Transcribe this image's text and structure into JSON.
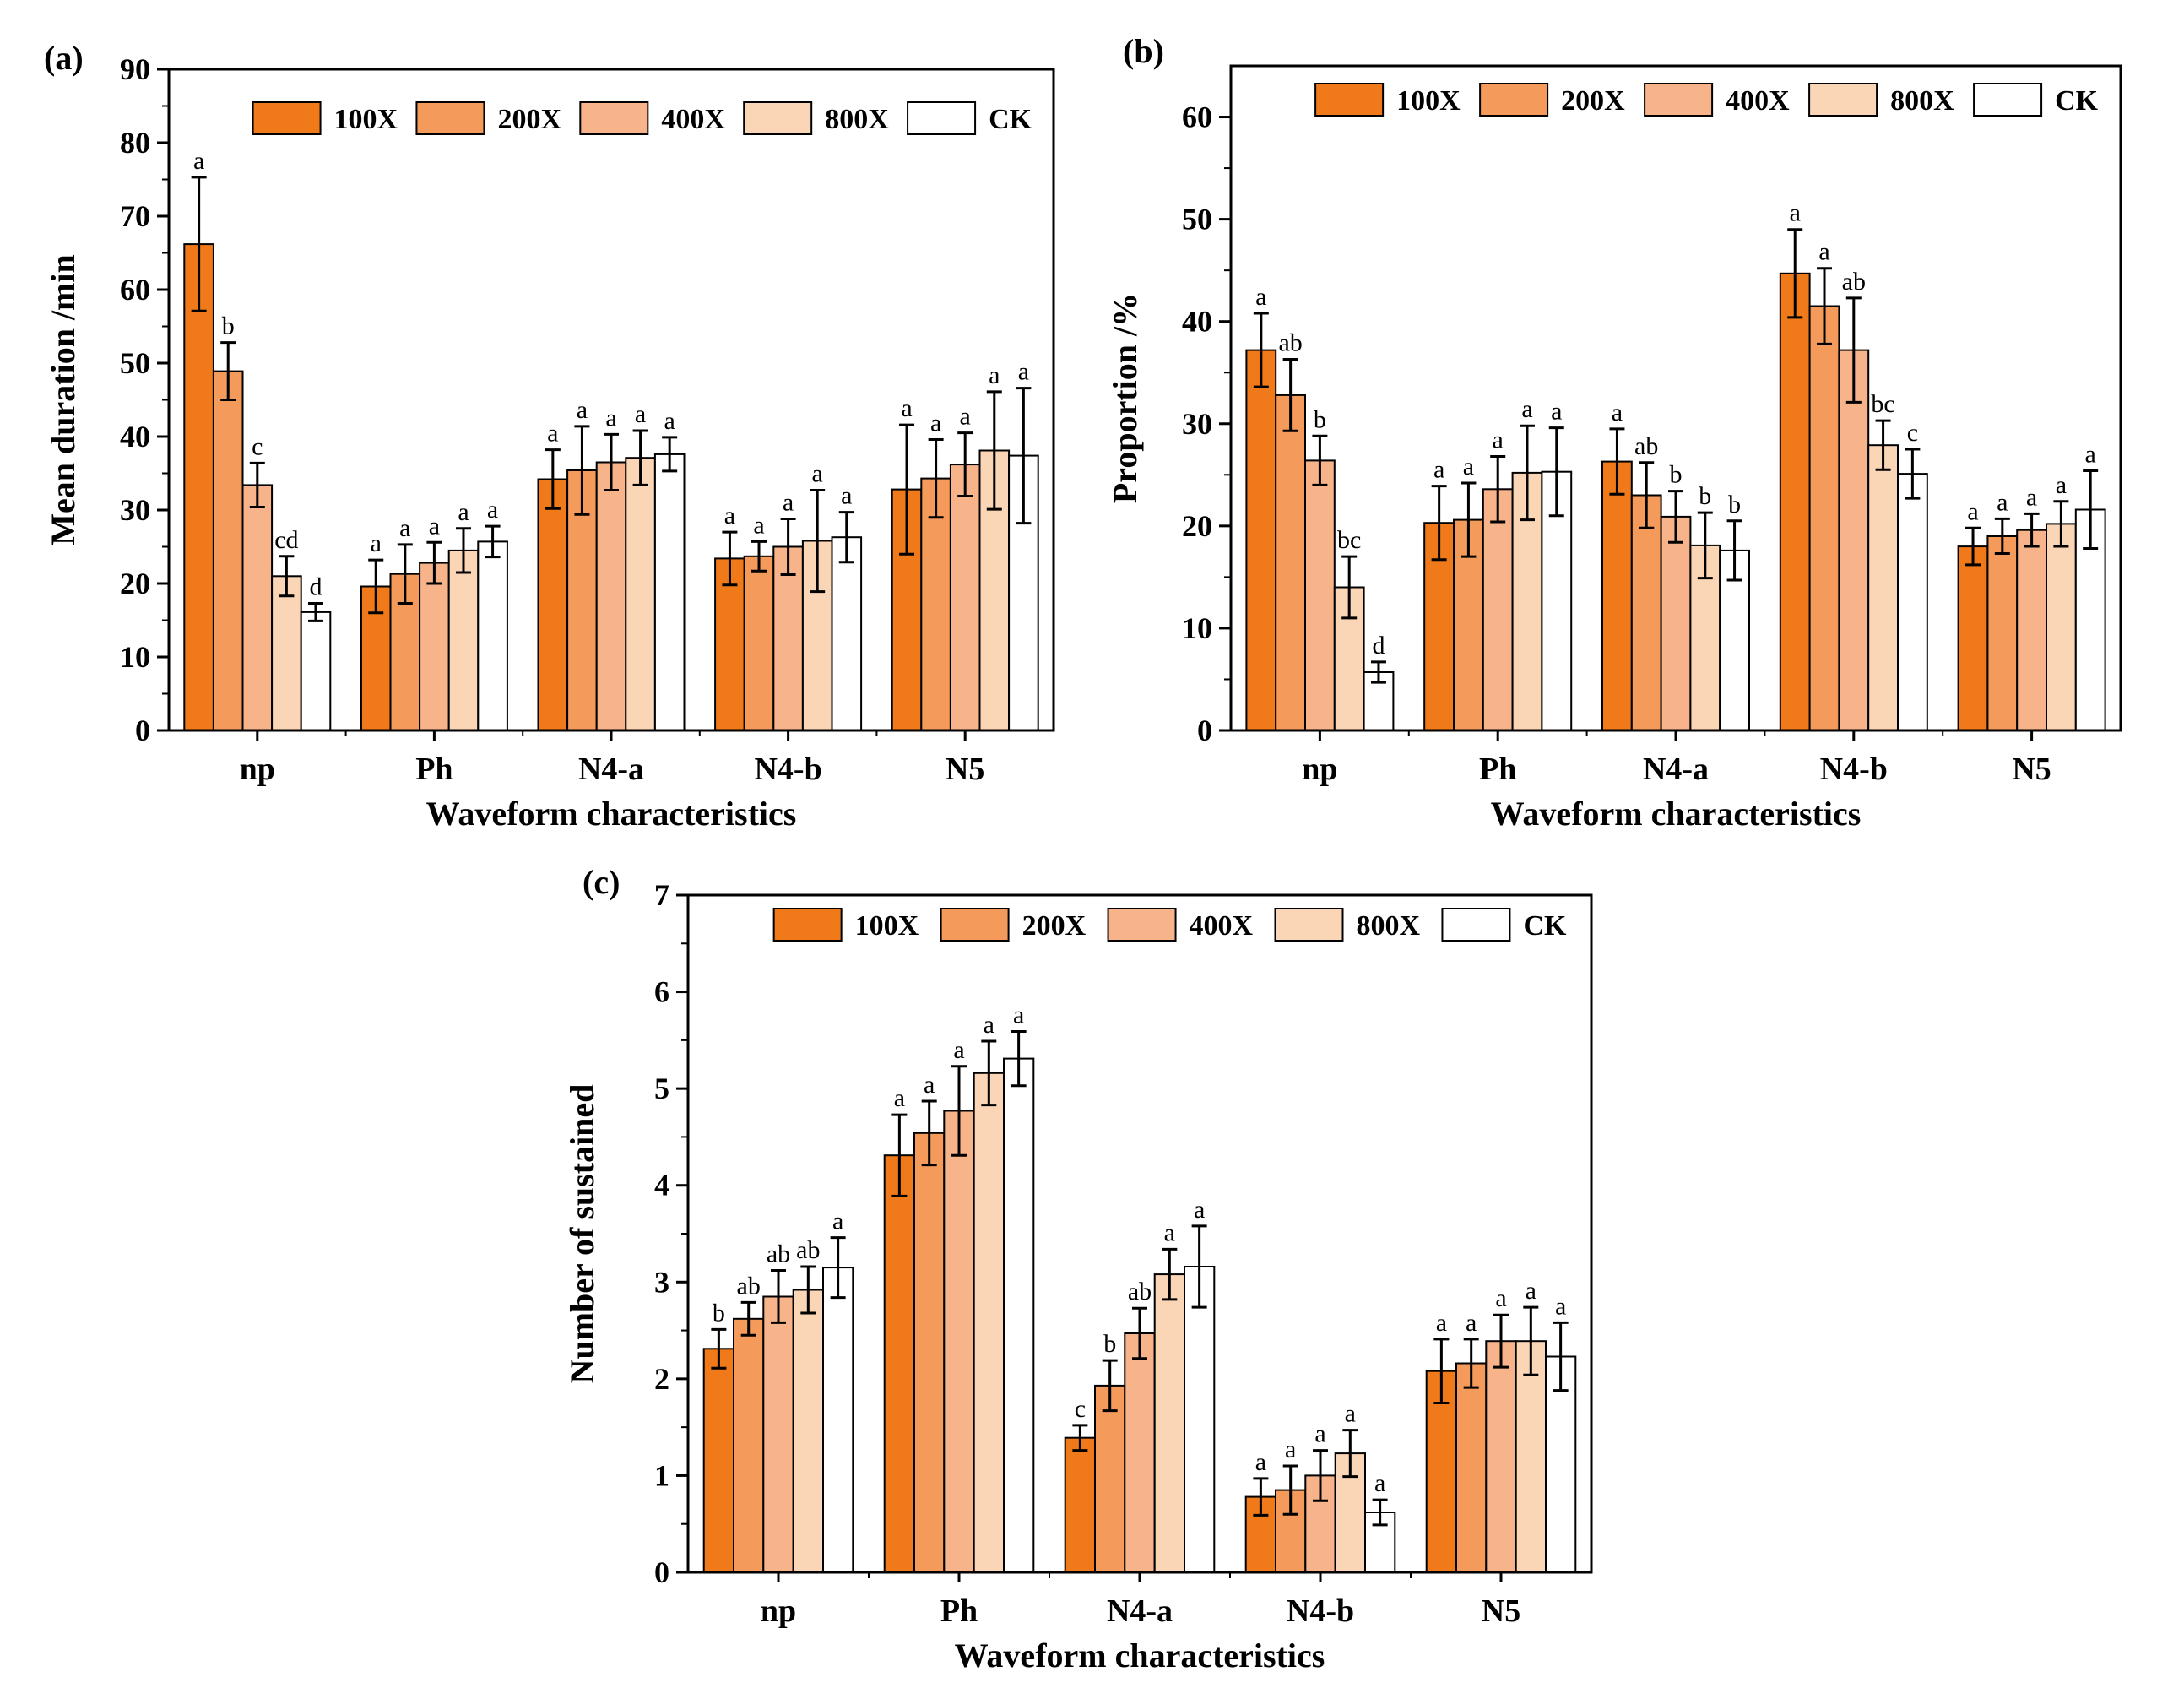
{
  "colors": {
    "100X": "#f07a1a",
    "200X": "#f49a5a",
    "400X": "#f7b48a",
    "800X": "#fbd6b6",
    "CK": "#ffffff"
  },
  "chart_data": [
    {
      "panel": "(a)",
      "type": "bar",
      "categories": [
        "np",
        "Ph",
        "N4-a",
        "N4-b",
        "N5"
      ],
      "xlabel": "Waveform characteristics",
      "ylabel": "Mean duration /min",
      "ylim": [
        0,
        90
      ],
      "yticks": [
        "0",
        "10",
        "20",
        "30",
        "40",
        "50",
        "60",
        "70",
        "80",
        "90"
      ],
      "legend_position": "top",
      "series": [
        {
          "name": "100X",
          "values": [
            66.2,
            19.6,
            34.2,
            23.4,
            32.8
          ],
          "errors": [
            9.1,
            3.6,
            4.0,
            3.6,
            8.8
          ],
          "letters": [
            "a",
            "a",
            "a",
            "a",
            "a"
          ]
        },
        {
          "name": "200X",
          "values": [
            48.9,
            21.3,
            35.4,
            23.7,
            34.3
          ],
          "errors": [
            3.9,
            4.0,
            6.0,
            2.0,
            5.3
          ],
          "letters": [
            "b",
            "a",
            "a",
            "a",
            "a"
          ]
        },
        {
          "name": "400X",
          "values": [
            33.4,
            22.8,
            36.5,
            25.0,
            36.2
          ],
          "errors": [
            3.0,
            2.8,
            3.8,
            3.8,
            4.3
          ],
          "letters": [
            "c",
            "a",
            "a",
            "a",
            "a"
          ]
        },
        {
          "name": "800X",
          "values": [
            21.0,
            24.5,
            37.1,
            25.8,
            38.1
          ],
          "errors": [
            2.7,
            3.0,
            3.7,
            6.9,
            8.0
          ],
          "letters": [
            "cd",
            "a",
            "a",
            "a",
            "a"
          ]
        },
        {
          "name": "CK",
          "values": [
            16.1,
            25.7,
            37.6,
            26.3,
            37.4
          ],
          "errors": [
            1.2,
            2.1,
            2.3,
            3.4,
            9.2
          ],
          "letters": [
            "d",
            "a",
            "a",
            "a",
            "a"
          ]
        }
      ]
    },
    {
      "panel": "(b)",
      "type": "bar",
      "categories": [
        "np",
        "Ph",
        "N4-a",
        "N4-b",
        "N5"
      ],
      "xlabel": "Waveform characteristics",
      "ylabel": "Proportion /%",
      "ylim": [
        0,
        65
      ],
      "yticks": [
        "0",
        "10",
        "20",
        "30",
        "40",
        "50",
        "60"
      ],
      "legend_position": "top",
      "series": [
        {
          "name": "100X",
          "values": [
            37.2,
            20.3,
            26.3,
            44.7,
            18.0
          ],
          "errors": [
            3.6,
            3.6,
            3.2,
            4.3,
            1.8
          ],
          "letters": [
            "a",
            "a",
            "a",
            "a",
            "a"
          ]
        },
        {
          "name": "200X",
          "values": [
            32.8,
            20.6,
            23.0,
            41.5,
            19.0
          ],
          "errors": [
            3.5,
            3.6,
            3.2,
            3.7,
            1.7
          ],
          "letters": [
            "ab",
            "a",
            "ab",
            "a",
            "a"
          ]
        },
        {
          "name": "400X",
          "values": [
            26.4,
            23.6,
            20.9,
            37.2,
            19.6
          ],
          "errors": [
            2.4,
            3.2,
            2.5,
            5.1,
            1.6
          ],
          "letters": [
            "b",
            "a",
            "b",
            "ab",
            "a"
          ]
        },
        {
          "name": "800X",
          "values": [
            14.0,
            25.2,
            18.1,
            27.9,
            20.2
          ],
          "errors": [
            3.0,
            4.6,
            3.2,
            2.4,
            2.2
          ],
          "letters": [
            "bc",
            "a",
            "b",
            "bc",
            "a"
          ]
        },
        {
          "name": "CK",
          "values": [
            5.7,
            25.3,
            17.6,
            25.1,
            21.6
          ],
          "errors": [
            1.0,
            4.3,
            2.9,
            2.4,
            3.8
          ],
          "letters": [
            "d",
            "a",
            "b",
            "c",
            "a"
          ]
        }
      ]
    },
    {
      "panel": "(c)",
      "type": "bar",
      "categories": [
        "np",
        "Ph",
        "N4-a",
        "N4-b",
        "N5"
      ],
      "xlabel": "Waveform characteristics",
      "ylabel": "Number of sustained",
      "ylim": [
        0,
        7
      ],
      "yticks": [
        "0",
        "1",
        "2",
        "3",
        "4",
        "5",
        "6",
        "7"
      ],
      "legend_position": "top",
      "series": [
        {
          "name": "100X",
          "values": [
            2.31,
            4.31,
            1.39,
            0.78,
            2.08
          ],
          "errors": [
            0.2,
            0.42,
            0.13,
            0.19,
            0.33
          ],
          "letters": [
            "b",
            "a",
            "c",
            "a",
            "a"
          ]
        },
        {
          "name": "200X",
          "values": [
            2.62,
            4.54,
            1.93,
            0.85,
            2.16
          ],
          "errors": [
            0.17,
            0.33,
            0.26,
            0.25,
            0.25
          ],
          "letters": [
            "ab",
            "a",
            "b",
            "a",
            "a"
          ]
        },
        {
          "name": "400X",
          "values": [
            2.85,
            4.77,
            2.47,
            1.0,
            2.39
          ],
          "errors": [
            0.27,
            0.46,
            0.26,
            0.26,
            0.27
          ],
          "letters": [
            "ab",
            "a",
            "ab",
            "a",
            "a"
          ]
        },
        {
          "name": "800X",
          "values": [
            2.92,
            5.16,
            3.08,
            1.23,
            2.39
          ],
          "errors": [
            0.24,
            0.33,
            0.26,
            0.24,
            0.35
          ],
          "letters": [
            "ab",
            "a",
            "a",
            "a",
            "a"
          ]
        },
        {
          "name": "CK",
          "values": [
            3.15,
            5.31,
            3.16,
            0.62,
            2.23
          ],
          "errors": [
            0.31,
            0.28,
            0.42,
            0.13,
            0.35
          ],
          "letters": [
            "a",
            "a",
            "a",
            "a",
            "a"
          ]
        }
      ]
    }
  ]
}
